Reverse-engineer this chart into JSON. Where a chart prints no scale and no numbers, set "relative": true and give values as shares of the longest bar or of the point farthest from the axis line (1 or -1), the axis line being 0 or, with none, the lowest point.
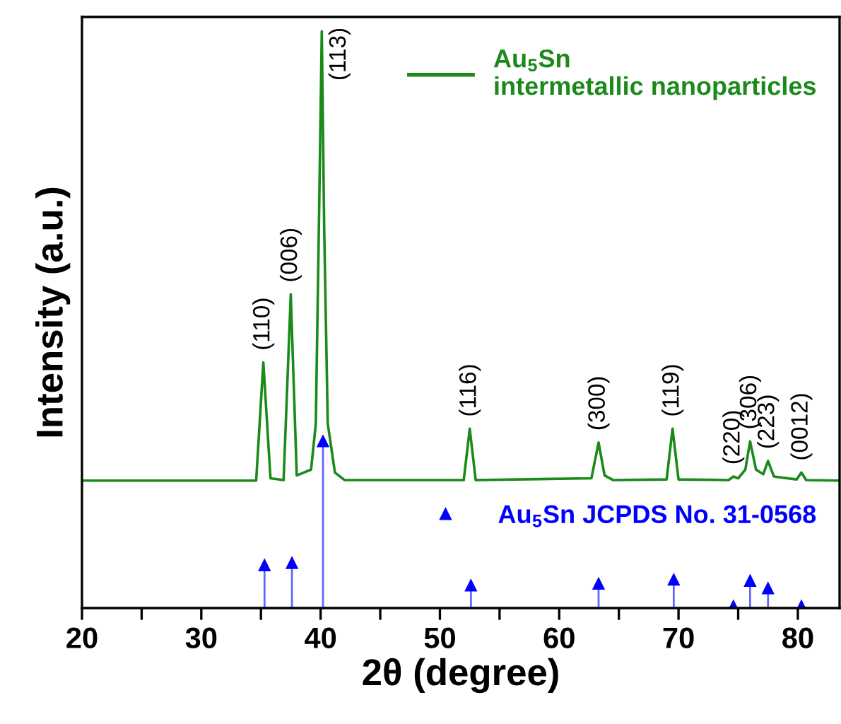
{
  "chart_data": {
    "type": "line",
    "xlabel": "2θ (degree)",
    "ylabel": "Intensity (a.u.)",
    "relative": true,
    "xlim": [
      20,
      83.5
    ],
    "xticks": [
      20,
      {
        "value": 25,
        "label": null
      },
      30,
      {
        "value": 35,
        "label": null
      },
      40,
      {
        "value": 45,
        "label": null
      },
      50,
      {
        "value": 55,
        "label": null
      },
      60,
      {
        "value": 65,
        "label": null
      },
      70,
      {
        "value": 75,
        "label": null
      },
      80
    ],
    "legend": "top right",
    "grid": false,
    "series": [
      {
        "name": "Au$_{5}$Sn\nintermetallic nanoparticles",
        "color": "#1a8a1a",
        "marker": "none",
        "x": [
          20,
          34.6,
          35.2,
          35.8,
          36.9,
          37.5,
          38.0,
          39.2,
          39.6,
          39.9,
          40.1,
          40.3,
          40.6,
          41.2,
          42.0,
          52.0,
          52.5,
          53.0,
          62.7,
          63.3,
          63.8,
          64.5,
          69.0,
          69.5,
          70.0,
          74.2,
          74.6,
          75.0,
          75.6,
          76.0,
          76.5,
          77.1,
          77.5,
          78.0,
          79.9,
          80.3,
          80.7,
          83.5
        ],
        "values": [
          0.221,
          0.221,
          0.426,
          0.225,
          0.222,
          0.544,
          0.23,
          0.24,
          0.32,
          0.72,
          1.0,
          0.66,
          0.32,
          0.235,
          0.222,
          0.222,
          0.311,
          0.222,
          0.225,
          0.287,
          0.23,
          0.222,
          0.223,
          0.311,
          0.223,
          0.222,
          0.228,
          0.225,
          0.24,
          0.289,
          0.24,
          0.232,
          0.255,
          0.228,
          0.223,
          0.235,
          0.222,
          0.221
        ]
      },
      {
        "name": "Au$_{5}$Sn JCPDS No. 31-0568",
        "type": "lollipop",
        "color": "#0000ff",
        "marker": "triangle",
        "x": [
          35.3,
          37.6,
          40.2,
          52.6,
          63.3,
          69.6,
          74.6,
          76.0,
          77.5,
          80.3
        ],
        "values": [
          0.074,
          0.078,
          0.289,
          0.039,
          0.042,
          0.049,
          0.003,
          0.047,
          0.034,
          0.003
        ]
      }
    ],
    "annotations": [
      {
        "text": "(110)",
        "x": 35.2,
        "y": 0.426
      },
      {
        "text": "(006)",
        "x": 37.5,
        "y": 0.544
      },
      {
        "text": "(113)",
        "x": 40.1,
        "y": 1.0
      },
      {
        "text": "(116)",
        "x": 52.5,
        "y": 0.311
      },
      {
        "text": "(300)",
        "x": 63.3,
        "y": 0.287
      },
      {
        "text": "(119)",
        "x": 69.5,
        "y": 0.311
      },
      {
        "text": "(220)",
        "x": 74.6,
        "y": 0.228
      },
      {
        "text": "(306)",
        "x": 76.0,
        "y": 0.289
      },
      {
        "text": "(223)",
        "x": 77.5,
        "y": 0.255
      },
      {
        "text": "(0012)",
        "x": 80.3,
        "y": 0.235
      }
    ]
  }
}
